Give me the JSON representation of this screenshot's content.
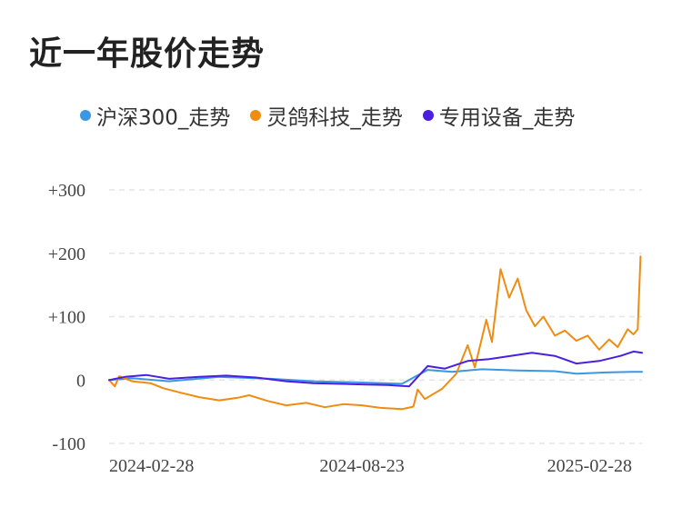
{
  "title": "近一年股价走势",
  "colors": {
    "hs300": "#3a97e4",
    "ljkj": "#ef8c11",
    "zysb": "#4a1fe0",
    "grid": "#e6e6e6",
    "tick": "#444444"
  },
  "chart_data": {
    "type": "line",
    "title": "近一年股价走势",
    "xlabel": "",
    "ylabel": "",
    "ylim": [
      -100,
      300
    ],
    "y_ticks": [
      "+300",
      "+200",
      "+100",
      "0",
      "-100"
    ],
    "y_tick_values": [
      300,
      200,
      100,
      0,
      -100
    ],
    "x_range": [
      "2024-02-28",
      "2025-03-07"
    ],
    "x_ticks": [
      "2024-02-28",
      "2024-08-23",
      "2025-02-28"
    ],
    "grid": true,
    "legend_position": "top",
    "series": [
      {
        "name": "沪深300_走势",
        "color": "#3a97e4",
        "points": [
          [
            "2024-02-28",
            0
          ],
          [
            "2024-03-15",
            3
          ],
          [
            "2024-04-10",
            -2
          ],
          [
            "2024-05-15",
            5
          ],
          [
            "2024-06-20",
            2
          ],
          [
            "2024-07-20",
            -2
          ],
          [
            "2024-08-23",
            -4
          ],
          [
            "2024-09-20",
            -6
          ],
          [
            "2024-10-08",
            16
          ],
          [
            "2024-10-25",
            13
          ],
          [
            "2024-11-15",
            17
          ],
          [
            "2024-12-10",
            15
          ],
          [
            "2025-01-05",
            14
          ],
          [
            "2025-01-20",
            10
          ],
          [
            "2025-02-10",
            12
          ],
          [
            "2025-02-28",
            13
          ],
          [
            "2025-03-07",
            13
          ]
        ]
      },
      {
        "name": "灵鸽科技_走势",
        "color": "#ef8c11",
        "points": [
          [
            "2024-02-28",
            0
          ],
          [
            "2024-03-03",
            -10
          ],
          [
            "2024-03-06",
            6
          ],
          [
            "2024-03-15",
            -2
          ],
          [
            "2024-03-28",
            -5
          ],
          [
            "2024-04-06",
            -13
          ],
          [
            "2024-04-18",
            -20
          ],
          [
            "2024-05-01",
            -27
          ],
          [
            "2024-05-15",
            -32
          ],
          [
            "2024-05-28",
            -28
          ],
          [
            "2024-06-05",
            -24
          ],
          [
            "2024-06-18",
            -33
          ],
          [
            "2024-07-01",
            -40
          ],
          [
            "2024-07-15",
            -36
          ],
          [
            "2024-07-28",
            -43
          ],
          [
            "2024-08-10",
            -38
          ],
          [
            "2024-08-23",
            -40
          ],
          [
            "2024-09-05",
            -44
          ],
          [
            "2024-09-20",
            -46
          ],
          [
            "2024-09-28",
            -42
          ],
          [
            "2024-10-01",
            -15
          ],
          [
            "2024-10-06",
            -30
          ],
          [
            "2024-10-18",
            -14
          ],
          [
            "2024-10-28",
            10
          ],
          [
            "2024-11-05",
            55
          ],
          [
            "2024-11-10",
            20
          ],
          [
            "2024-11-18",
            95
          ],
          [
            "2024-11-22",
            60
          ],
          [
            "2024-11-28",
            175
          ],
          [
            "2024-12-04",
            130
          ],
          [
            "2024-12-10",
            160
          ],
          [
            "2024-12-16",
            110
          ],
          [
            "2024-12-22",
            85
          ],
          [
            "2024-12-28",
            100
          ],
          [
            "2025-01-05",
            70
          ],
          [
            "2025-01-12",
            78
          ],
          [
            "2025-01-20",
            62
          ],
          [
            "2025-01-28",
            70
          ],
          [
            "2025-02-05",
            48
          ],
          [
            "2025-02-12",
            64
          ],
          [
            "2025-02-18",
            52
          ],
          [
            "2025-02-25",
            80
          ],
          [
            "2025-03-01",
            72
          ],
          [
            "2025-03-04",
            80
          ],
          [
            "2025-03-06",
            195
          ]
        ]
      },
      {
        "name": "专用设备_走势",
        "color": "#4a1fe0",
        "points": [
          [
            "2024-02-28",
            0
          ],
          [
            "2024-03-10",
            5
          ],
          [
            "2024-03-25",
            8
          ],
          [
            "2024-04-10",
            2
          ],
          [
            "2024-05-01",
            5
          ],
          [
            "2024-05-20",
            7
          ],
          [
            "2024-06-10",
            4
          ],
          [
            "2024-07-01",
            -2
          ],
          [
            "2024-07-20",
            -5
          ],
          [
            "2024-08-23",
            -7
          ],
          [
            "2024-09-10",
            -8
          ],
          [
            "2024-09-25",
            -10
          ],
          [
            "2024-10-08",
            22
          ],
          [
            "2024-10-20",
            18
          ],
          [
            "2024-11-05",
            30
          ],
          [
            "2024-11-20",
            33
          ],
          [
            "2024-12-05",
            38
          ],
          [
            "2024-12-20",
            43
          ],
          [
            "2025-01-05",
            38
          ],
          [
            "2025-01-20",
            26
          ],
          [
            "2025-02-05",
            30
          ],
          [
            "2025-02-20",
            38
          ],
          [
            "2025-03-01",
            45
          ],
          [
            "2025-03-07",
            43
          ]
        ]
      }
    ]
  }
}
